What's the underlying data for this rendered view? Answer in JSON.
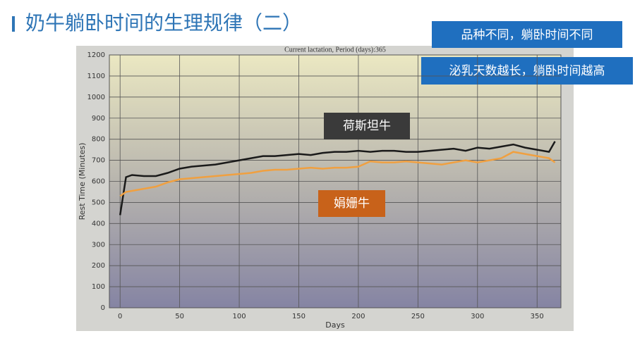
{
  "slide_title": "奶牛躺卧时间的生理规律（二）",
  "callouts": [
    "品种不同，躺卧时间不同",
    "泌乳天数越长，躺卧时间越高"
  ],
  "chart_data": {
    "type": "line",
    "title": "Current lactation, Period (days):365",
    "x_label": "Days",
    "y_label": "Rest Time (Minutes)",
    "x": [
      0,
      5,
      10,
      20,
      30,
      40,
      50,
      60,
      70,
      80,
      90,
      100,
      110,
      120,
      130,
      140,
      150,
      160,
      170,
      180,
      190,
      200,
      210,
      220,
      230,
      240,
      250,
      260,
      270,
      280,
      290,
      300,
      310,
      320,
      330,
      340,
      350,
      360,
      365
    ],
    "series": [
      {
        "name": "荷斯坦牛",
        "color": "#1a1a1a",
        "values": [
          440,
          620,
          630,
          625,
          625,
          640,
          660,
          670,
          675,
          680,
          690,
          700,
          710,
          720,
          720,
          725,
          730,
          725,
          735,
          740,
          740,
          745,
          740,
          745,
          745,
          740,
          740,
          745,
          750,
          755,
          745,
          760,
          755,
          765,
          775,
          760,
          750,
          740,
          790
        ]
      },
      {
        "name": "娟姗牛",
        "color": "#f0a040",
        "values": [
          530,
          550,
          555,
          565,
          575,
          595,
          610,
          615,
          620,
          625,
          630,
          635,
          640,
          650,
          655,
          655,
          660,
          665,
          660,
          665,
          665,
          670,
          695,
          690,
          690,
          695,
          690,
          685,
          680,
          690,
          700,
          690,
          700,
          710,
          740,
          730,
          720,
          710,
          690
        ]
      }
    ],
    "xlim": [
      -9,
      370
    ],
    "ylim": [
      0,
      1200
    ],
    "xticks": [
      0,
      50,
      100,
      150,
      200,
      250,
      300,
      350
    ],
    "yticks": [
      0,
      100,
      200,
      300,
      400,
      500,
      600,
      700,
      800,
      900,
      1000,
      1100,
      1200
    ],
    "grid": true
  }
}
